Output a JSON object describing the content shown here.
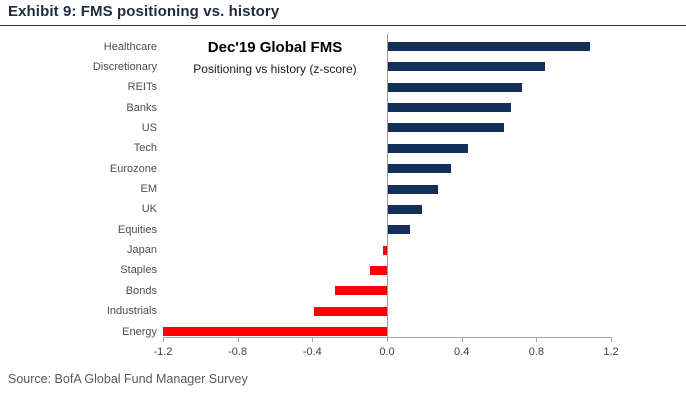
{
  "header": {
    "title": "Exhibit 9: FMS positioning vs. history"
  },
  "source": {
    "text": "Source: BofA Global Fund Manager Survey"
  },
  "colors": {
    "positive_bar": "#14305a",
    "negative_bar": "#fe0000",
    "header_text": "#1f2b3c",
    "rule": "#24364d",
    "axis": "#a6a6a6",
    "tick_text": "#404040",
    "category_text": "#4d4d4d",
    "source_text": "#595959"
  },
  "chart_data": {
    "type": "bar",
    "orientation": "horizontal",
    "title": "Dec'19 Global FMS",
    "subtitle": "Positioning vs history (z-score)",
    "categories": [
      "Healthcare",
      "Discretionary",
      "REITs",
      "Banks",
      "US",
      "Tech",
      "Eurozone",
      "EM",
      "UK",
      "Equities",
      "Japan",
      "Staples",
      "Bonds",
      "Industrials",
      "Energy"
    ],
    "values": [
      1.08,
      0.84,
      0.72,
      0.66,
      0.62,
      0.43,
      0.34,
      0.27,
      0.18,
      0.12,
      -0.02,
      -0.09,
      -0.28,
      -0.39,
      -1.2
    ],
    "xlim": [
      -1.2,
      1.2
    ],
    "x_ticks": [
      -1.2,
      -0.8,
      -0.4,
      0.0,
      0.4,
      0.8,
      1.2
    ],
    "x_tick_labels": [
      "-1.2",
      "-0.8",
      "-0.4",
      "0.0",
      "0.4",
      "0.8",
      "1.2"
    ],
    "grid": false,
    "legend": false,
    "positive_color": "#14305a",
    "negative_color": "#fe0000"
  }
}
